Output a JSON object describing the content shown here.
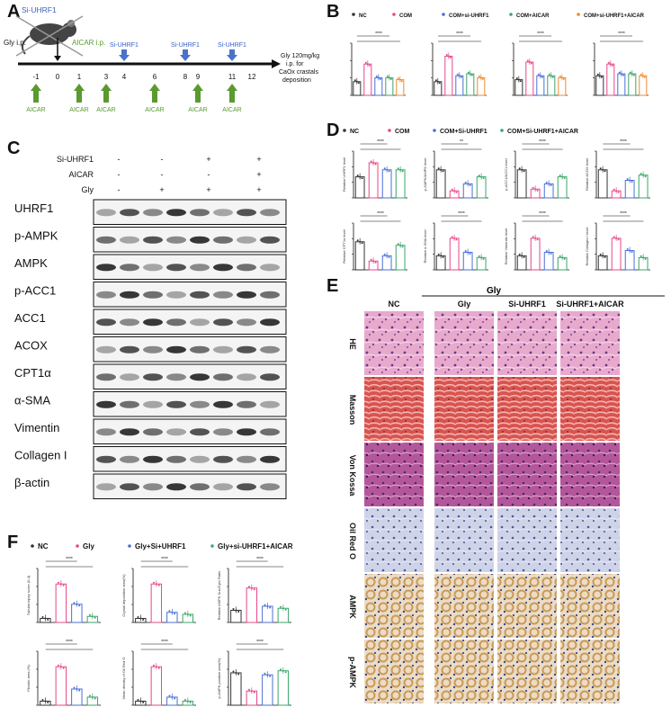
{
  "figure_title": "",
  "panels": {
    "A": {
      "label": "A",
      "mouse_label": "Si-UHRF1",
      "gly_label": "Gly i.p.",
      "aicar_ip_label": "AICAR i.p.",
      "days": [
        "-1",
        "0",
        "1",
        "3",
        "4",
        "6",
        "8",
        "9",
        "11",
        "12"
      ],
      "si_uhrf1_days": [
        "4",
        "8",
        "11"
      ],
      "si_uhrf1_label": "Si-UHRF1",
      "aicar_days": [
        "-1",
        "1",
        "3",
        "6",
        "9",
        "11"
      ],
      "aicar_label": "AICAR",
      "endpoint_text_1": "Gly 120mg/kg",
      "endpoint_text_2": "i.p. for",
      "endpoint_text_3": "CaOx crastals",
      "endpoint_text_4": "deposition"
    },
    "B": {
      "label": "B",
      "legend": [
        {
          "name": "NC",
          "color": "#333333"
        },
        {
          "name": "COM",
          "color": "#e8468b"
        },
        {
          "name": "COM+si-UHRF1",
          "color": "#4a6fd8"
        },
        {
          "name": "COM+AICAR",
          "color": "#3aa66a"
        },
        {
          "name": "COM+si-UHRF1+AICAR",
          "color": "#f08a2e"
        }
      ],
      "significance": [
        "****",
        "****",
        "****",
        "****",
        "***",
        "****",
        "****",
        "**"
      ]
    },
    "C": {
      "label": "C",
      "treatments": [
        {
          "name": "Si-UHRF1",
          "signs": [
            "-",
            "-",
            "+",
            "+"
          ]
        },
        {
          "name": "AICAR",
          "signs": [
            "-",
            "-",
            "-",
            "+"
          ]
        },
        {
          "name": "Gly",
          "signs": [
            "-",
            "+",
            "+",
            "+"
          ]
        }
      ],
      "bands": [
        "UHRF1",
        "p-AMPK",
        "AMPK",
        "p-ACC1",
        "ACC1",
        "ACOX",
        "CPT1α",
        "α-SMA",
        "Vimentin",
        "Collagen I",
        "β-actin"
      ]
    },
    "D": {
      "label": "D",
      "legend": [
        {
          "name": "NC",
          "color": "#333333"
        },
        {
          "name": "COM",
          "color": "#e8468b"
        },
        {
          "name": "COM+Si-UHRF1",
          "color": "#4a6fd8"
        },
        {
          "name": "COM+Si-UHRF1+AICAR",
          "color": "#3aa66a"
        }
      ],
      "ylabels": [
        "Relative UHRF1 level",
        "p-AMPK/AMPK level",
        "p-ACC1/ACC1 level",
        "Relative ACOX level",
        "Relative CPT1α level",
        "Relative α-SMA level",
        "Relative Vimentin level",
        "Relative Collagen I level"
      ],
      "significance": [
        "****",
        "**",
        "****",
        "****",
        "****",
        "****",
        "****",
        "****"
      ]
    },
    "E": {
      "label": "E",
      "group_header": "Gly",
      "columns": [
        "NC",
        "Gly",
        "Si-UHRF1",
        "Si-UHRF1+AICAR"
      ],
      "rows": [
        "HE",
        "Masson",
        "Von Kossa",
        "Oil Red O",
        "AMPK",
        "p-AMPK"
      ]
    },
    "F": {
      "label": "F",
      "legend": [
        {
          "name": "NC",
          "color": "#333333"
        },
        {
          "name": "Gly",
          "color": "#e8468b"
        },
        {
          "name": "Gly+Si+UHRF1",
          "color": "#4a6fd8"
        },
        {
          "name": "Gly+si-UHRF1+AICAR",
          "color": "#3aa66a"
        }
      ],
      "ylabels": [
        "Tubular injury score (0-4)",
        "Crystal deposition area(%)",
        "Relative AMPK Nuc/Cyto Ratio",
        "Fibrotic area (%)",
        "Mean density of Oil Red O",
        "p-AMPK positive area(%)"
      ],
      "significance": [
        "****",
        "****",
        "****",
        "****",
        "****",
        "****"
      ]
    }
  }
}
